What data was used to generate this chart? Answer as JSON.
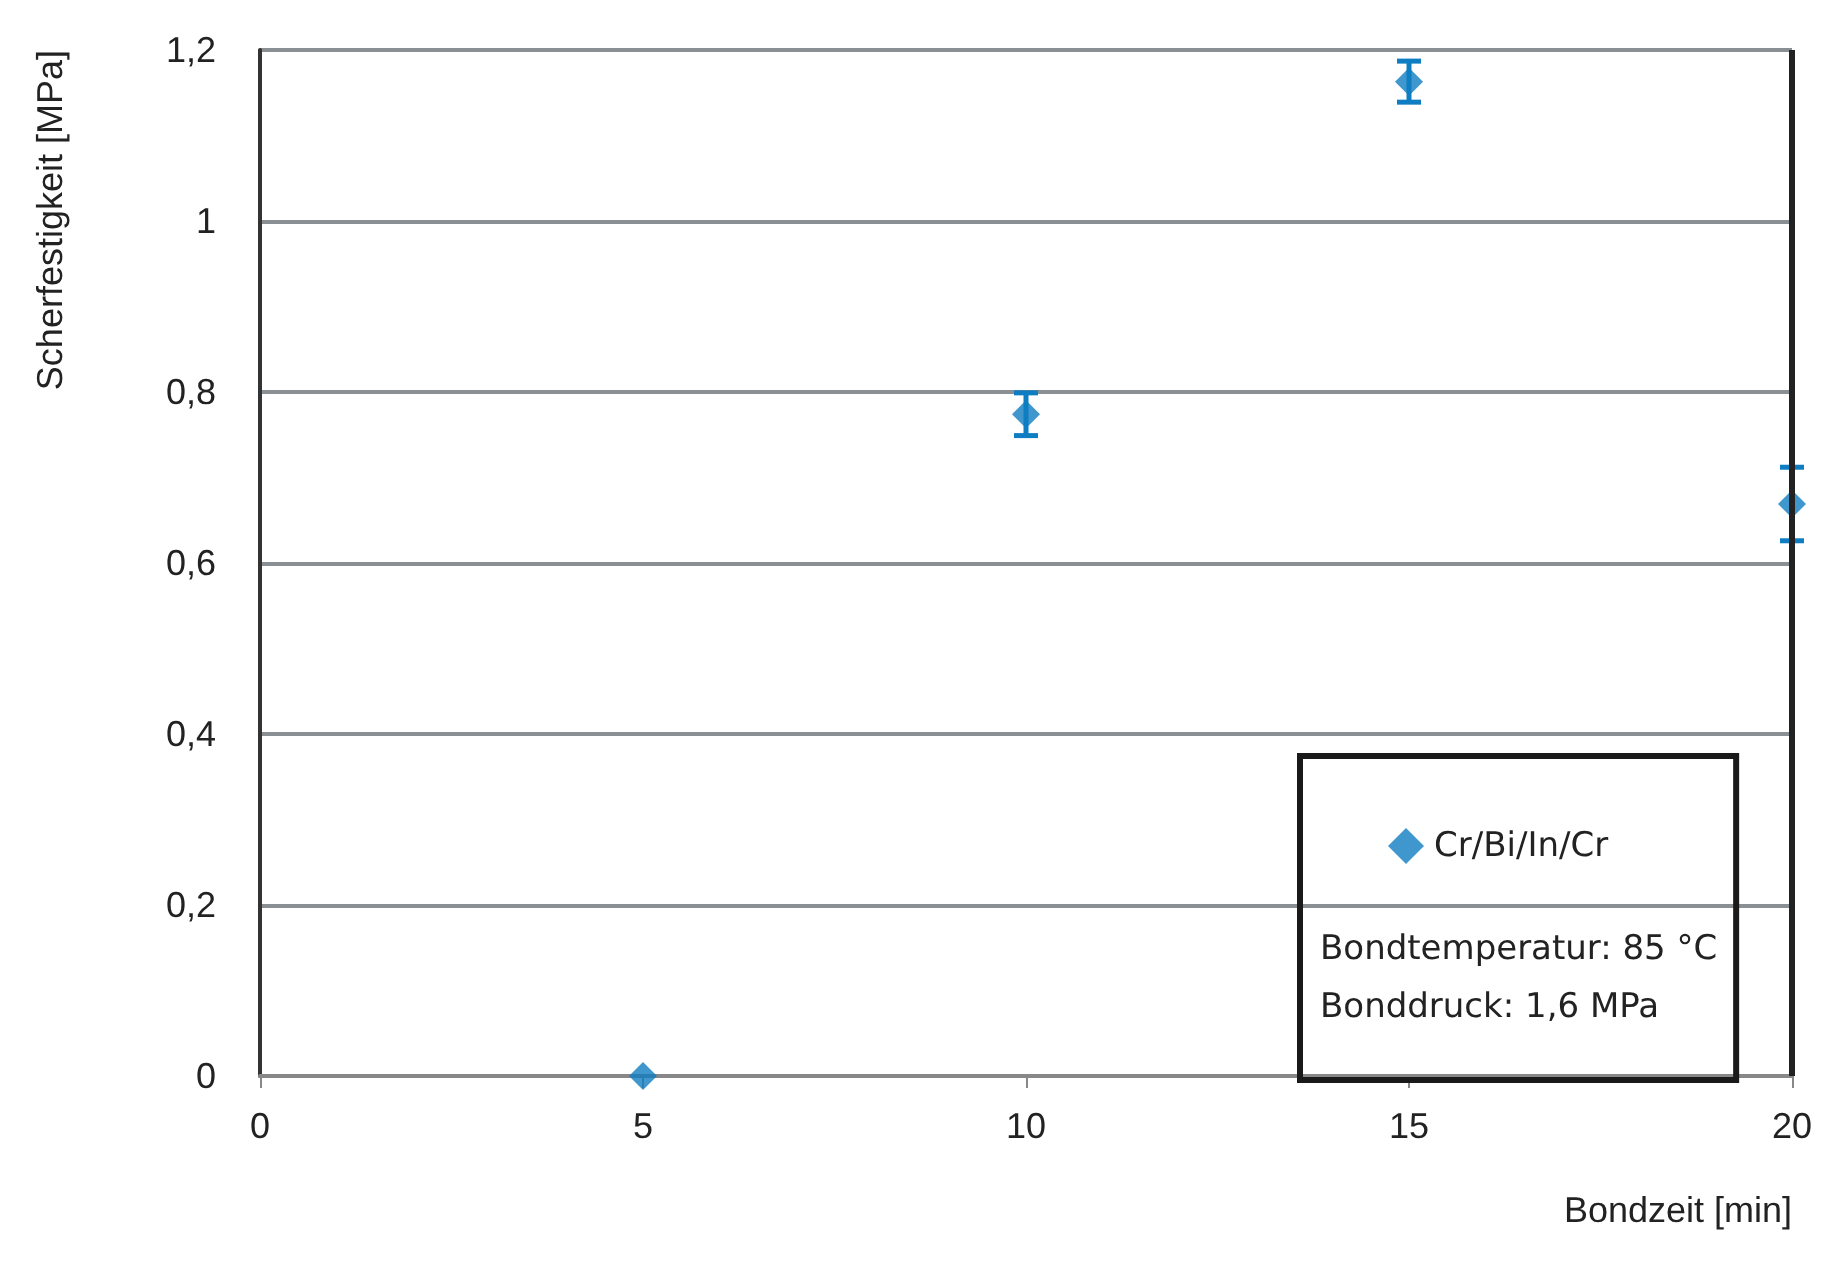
{
  "chart_data": {
    "type": "scatter",
    "xlabel": "Bondzeit [min]",
    "ylabel": "Scherfestigkeit [MPa]",
    "x": [
      5,
      10,
      15,
      20
    ],
    "series": [
      {
        "name": "Cr/Bi/In/Cr",
        "color": "#0f7dc2",
        "values": [
          0,
          0.774,
          1.163,
          0.669
        ],
        "errors": [
          null,
          0.025,
          0.024,
          0.043
        ]
      }
    ],
    "xlim": [
      0,
      20
    ],
    "xticks": [
      0,
      5,
      10,
      15,
      20
    ],
    "ylim": [
      0,
      1.2
    ],
    "yticks": [
      0,
      {
        "value": 0.2,
        "label": "0,2"
      },
      {
        "value": 0.4,
        "label": "0,4"
      },
      {
        "value": 0.6,
        "label": "0,6"
      },
      {
        "value": 0.8,
        "label": "0,8"
      },
      1,
      {
        "value": 1.2,
        "label": "1,2"
      }
    ],
    "grid": "y",
    "legend": "bottom right",
    "marker": "diamond",
    "annotations": [
      "Bondtemperatur: 85 °C",
      "Bonddruck: 1,6 MPa"
    ]
  }
}
